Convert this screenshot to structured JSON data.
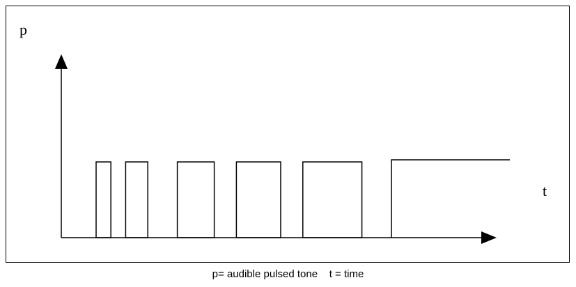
{
  "axis_labels": {
    "y": "p",
    "x": "t"
  },
  "caption": "p= audible pulsed tone    t = time",
  "pulse_sequence": {
    "pulses": [
      {
        "start": 1,
        "duration": 1
      },
      {
        "start": 3,
        "duration": 1.5
      },
      {
        "start": 6.5,
        "duration": 2.5
      },
      {
        "start": 10.5,
        "duration": 3
      },
      {
        "start": 15,
        "duration": 4
      }
    ],
    "continuous_from": 21,
    "colors": {
      "stroke": "#000000"
    }
  }
}
